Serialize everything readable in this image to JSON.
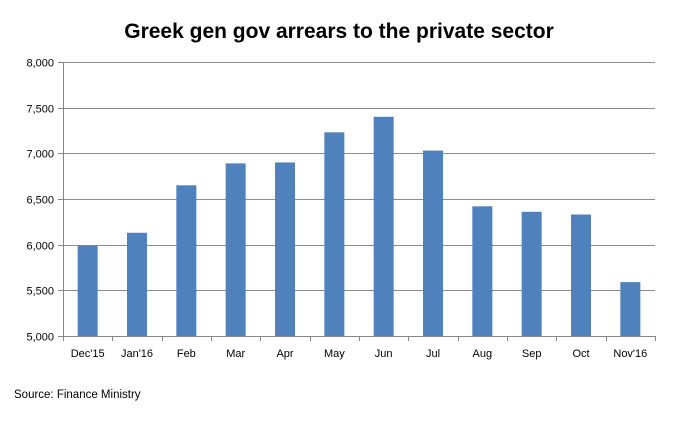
{
  "chart_data": {
    "type": "bar",
    "title": "Greek gen gov arrears to the private sector",
    "categories": [
      "Dec'15",
      "Jan'16",
      "Feb",
      "Mar",
      "Apr",
      "May",
      "Jun",
      "Jul",
      "Aug",
      "Sep",
      "Oct",
      "Nov'16"
    ],
    "values": [
      5990,
      6130,
      6650,
      6890,
      6900,
      7230,
      7400,
      7030,
      6420,
      6360,
      6330,
      5590
    ],
    "xlabel": "",
    "ylabel": "",
    "ylim": [
      5000,
      8000
    ],
    "yticks": [
      5000,
      5500,
      6000,
      6500,
      7000,
      7500,
      8000
    ],
    "ytick_labels": [
      "5,000",
      "5,500",
      "6,000",
      "6,500",
      "7,000",
      "7,500",
      "8,000"
    ],
    "grid": true,
    "legend": "none",
    "bar_color": "#4f81bd",
    "grid_color": "#8c8c8c"
  },
  "source": "Source: Finance Ministry"
}
